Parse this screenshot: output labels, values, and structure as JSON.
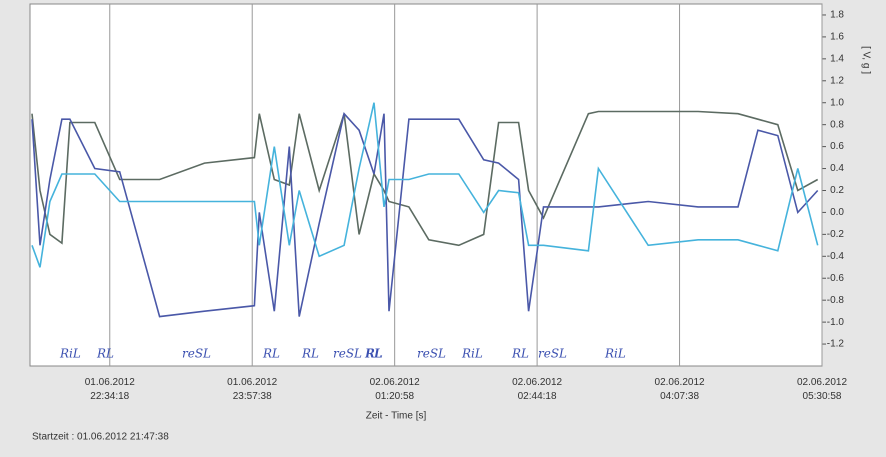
{
  "chart_data": {
    "type": "line",
    "y_label": "[ V, g ]",
    "x_label": "Zeit - Time [s]",
    "start_label": "Startzeit : 01.06.2012 21:47:38",
    "x": [
      70,
      350,
      700,
      1120,
      1400,
      2275,
      3150,
      4550,
      6125,
      7875,
      8050,
      8575,
      9100,
      9450,
      10150,
      11025,
      11550,
      12075,
      12425,
      12600,
      13300,
      14000,
      15050,
      15925,
      16450,
      17150,
      17500,
      18025,
      19600,
      19950,
      21700,
      23450,
      24850,
      25550,
      26250,
      26950,
      27650
    ],
    "series": [
      {
        "color": "#5c6b62",
        "values": [
          0.9,
          0.2,
          -0.2,
          -0.28,
          0.82,
          0.82,
          0.3,
          0.3,
          0.45,
          0.5,
          0.9,
          0.3,
          0.25,
          0.9,
          0.2,
          0.9,
          -0.2,
          0.35,
          0.2,
          0.1,
          0.05,
          -0.25,
          -0.3,
          -0.2,
          0.82,
          0.82,
          0.2,
          -0.05,
          0.9,
          0.92,
          0.92,
          0.92,
          0.9,
          0.85,
          0.8,
          0.2,
          0.3
        ]
      },
      {
        "color": "#4a58a8",
        "values": [
          0.85,
          -0.3,
          0.3,
          0.85,
          0.85,
          0.4,
          0.37,
          -0.95,
          -0.9,
          -0.85,
          0.0,
          -0.9,
          0.6,
          -0.95,
          -0.1,
          0.9,
          0.75,
          0.35,
          0.9,
          -0.9,
          0.85,
          0.85,
          0.85,
          0.48,
          0.45,
          0.3,
          -0.9,
          0.05,
          0.05,
          0.05,
          0.1,
          0.05,
          0.05,
          0.75,
          0.7,
          0.0,
          0.2
        ]
      },
      {
        "color": "#45b3dc",
        "values": [
          -0.3,
          -0.5,
          0.1,
          0.35,
          0.35,
          0.35,
          0.1,
          0.1,
          0.1,
          0.1,
          -0.3,
          0.6,
          -0.3,
          0.2,
          -0.4,
          -0.3,
          0.4,
          1.0,
          0.05,
          0.3,
          0.3,
          0.35,
          0.35,
          0.0,
          0.2,
          0.18,
          -0.3,
          -0.3,
          -0.35,
          0.4,
          -0.3,
          -0.25,
          -0.25,
          -0.3,
          -0.35,
          0.4,
          -0.3
        ]
      }
    ],
    "xlim": [
      0,
      27800
    ],
    "xticks": [
      {
        "value": 2800,
        "label": "01.06.2012\n22:34:18"
      },
      {
        "value": 7800,
        "label": "01.06.2012\n23:57:38"
      },
      {
        "value": 12800,
        "label": "02.06.2012\n01:20:58"
      },
      {
        "value": 17800,
        "label": "02.06.2012\n02:44:18"
      },
      {
        "value": 22800,
        "label": "02.06.2012\n04:07:38"
      },
      {
        "value": 27800,
        "label": "02.06.2012\n05:30:58"
      }
    ],
    "ylim": [
      -1.4,
      1.9
    ],
    "yticks": [
      1.8,
      1.6,
      1.4,
      1.2,
      {
        "value": 1.0,
        "label": "1.0"
      },
      0.8,
      0.6,
      0.4,
      0.2,
      {
        "value": 0.0,
        "label": "0.0"
      },
      -0.2,
      -0.4,
      -0.6,
      -0.8,
      {
        "value": -1.0,
        "label": "-1.0"
      },
      -1.2
    ],
    "grid": true,
    "annotations": [
      "RiL",
      "RL",
      "reSL",
      "RL",
      "RL",
      "reSL RL",
      "RL",
      "reSL",
      "RiL",
      "RL",
      "reSL",
      "RiL"
    ]
  }
}
